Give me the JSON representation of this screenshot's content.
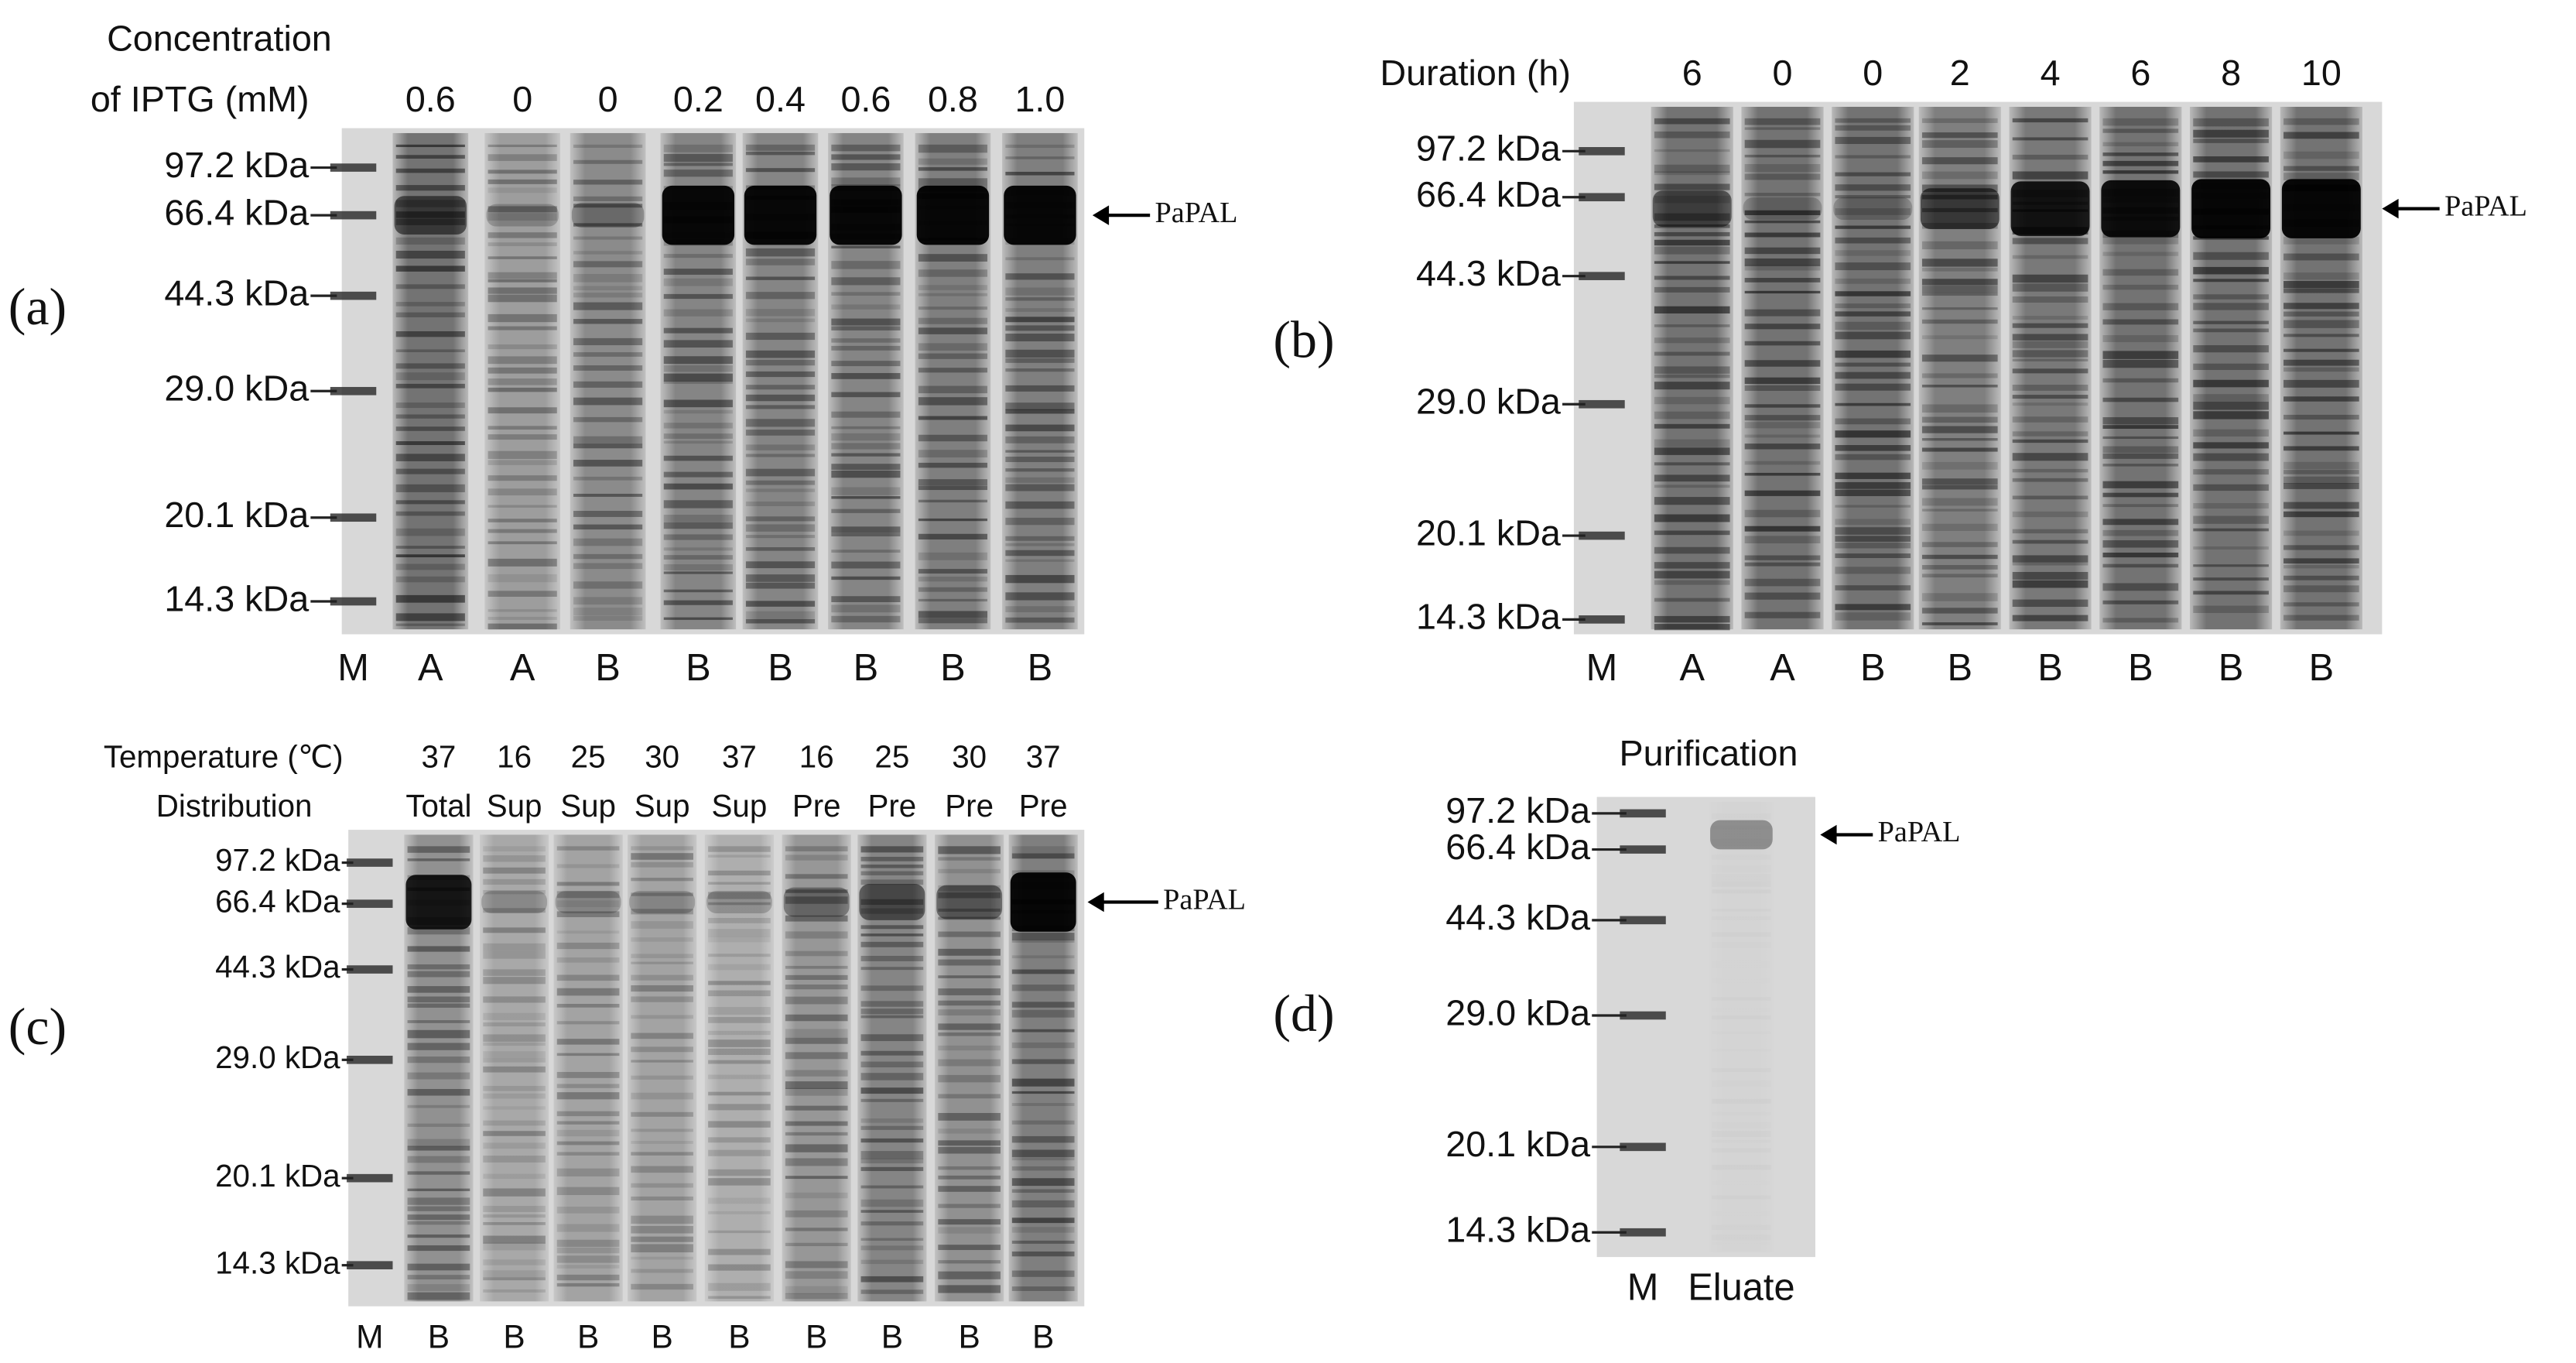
{
  "panels": [
    {
      "label": "(a)",
      "header_rows": [
        {
          "title": "Concentration"
        },
        {
          "title": "of IPTG (mM)",
          "values": [
            "0.6",
            "0",
            "0",
            "0.2",
            "0.4",
            "0.6",
            "0.8",
            "1.0"
          ]
        }
      ],
      "markers": [
        "97.2 kDa",
        "66.4 kDa",
        "44.3 kDa",
        "29.0 kDa",
        "20.1 kDa",
        "14.3 kDa"
      ],
      "lanes": [
        "M",
        "A",
        "A",
        "B",
        "B",
        "B",
        "B",
        "B",
        "B"
      ],
      "arrow": "PaPAL"
    },
    {
      "label": "(b)",
      "header_rows": [
        {
          "title": "Duration (h)",
          "values": [
            "6",
            "0",
            "0",
            "2",
            "4",
            "6",
            "8",
            "10"
          ]
        }
      ],
      "markers": [
        "97.2 kDa",
        "66.4 kDa",
        "44.3 kDa",
        "29.0 kDa",
        "20.1 kDa",
        "14.3 kDa"
      ],
      "lanes": [
        "M",
        "A",
        "A",
        "B",
        "B",
        "B",
        "B",
        "B",
        "B"
      ],
      "arrow": "PaPAL"
    },
    {
      "label": "(c)",
      "header_rows": [
        {
          "title": "Temperature (℃)",
          "values": [
            "37",
            "16",
            "25",
            "30",
            "37",
            "16",
            "25",
            "30",
            "37"
          ]
        },
        {
          "title": "Distribution",
          "values": [
            "Total",
            "Sup",
            "Sup",
            "Sup",
            "Sup",
            "Pre",
            "Pre",
            "Pre",
            "Pre"
          ]
        }
      ],
      "markers": [
        "97.2 kDa",
        "66.4 kDa",
        "44.3 kDa",
        "29.0 kDa",
        "20.1 kDa",
        "14.3 kDa"
      ],
      "lanes": [
        "M",
        "B",
        "B",
        "B",
        "B",
        "B",
        "B",
        "B",
        "B",
        "B"
      ],
      "arrow": "PaPAL"
    },
    {
      "label": "(d)",
      "header_rows": [
        {
          "title": "Purification"
        }
      ],
      "markers": [
        "97.2 kDa",
        "66.4 kDa",
        "44.3 kDa",
        "29.0 kDa",
        "20.1 kDa",
        "14.3 kDa"
      ],
      "lanes": [
        "M",
        "Eluate"
      ],
      "arrow": "PaPAL"
    }
  ]
}
